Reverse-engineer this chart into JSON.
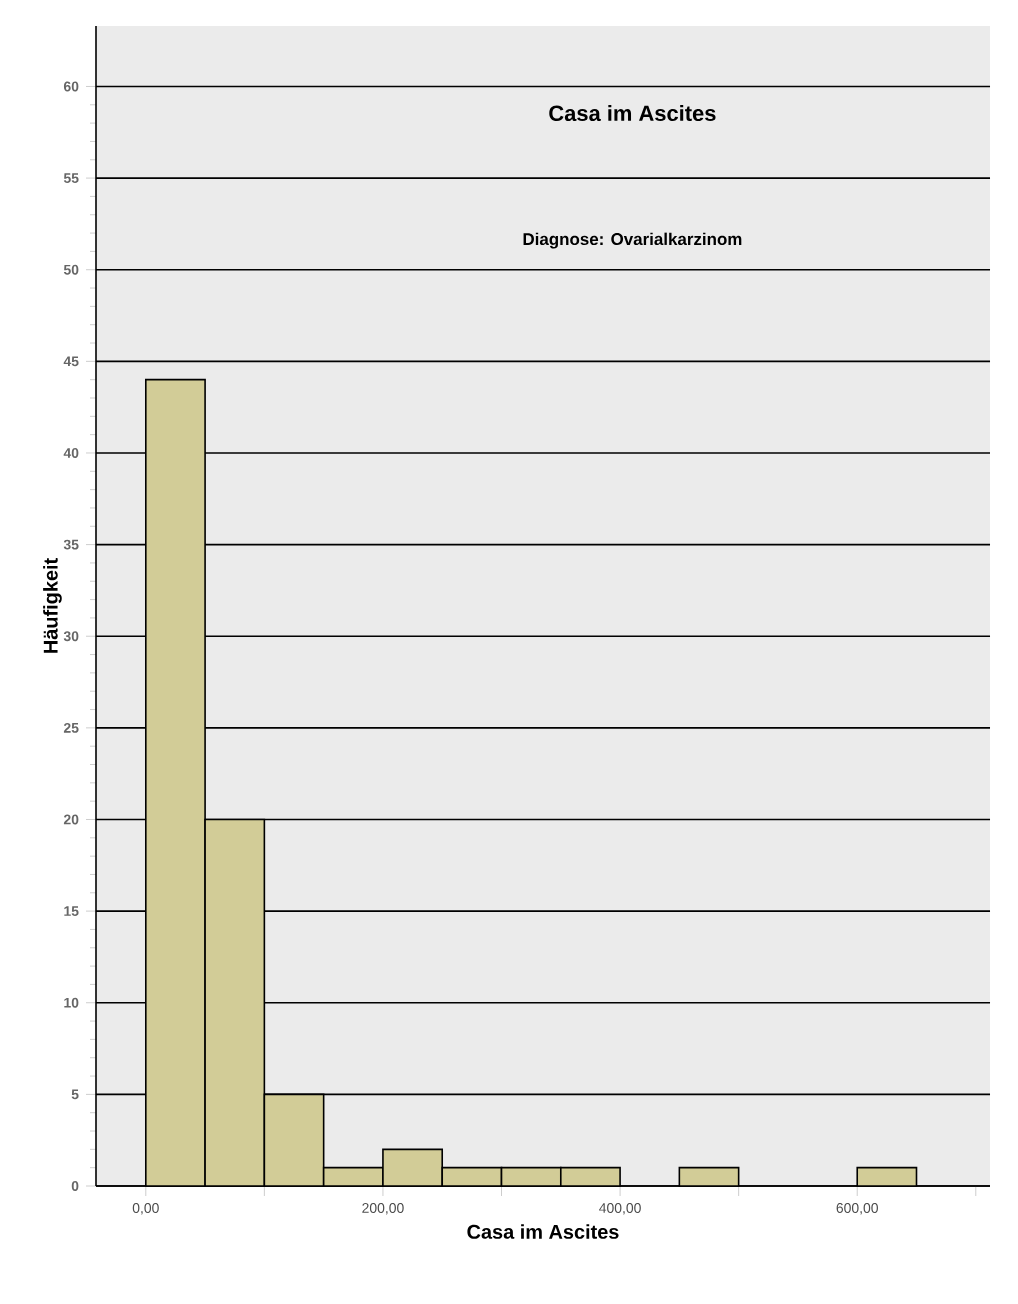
{
  "chart_data": {
    "type": "histogram",
    "title": "Casa im Ascites",
    "subtitle": "Diagnose: Ovarialkarzinom",
    "xlabel": "Casa im Ascites",
    "ylabel": "Häufigkeit",
    "bins": [
      0,
      50,
      100,
      150,
      200,
      250,
      300,
      350,
      400,
      450,
      500,
      550,
      600,
      650
    ],
    "values": [
      44,
      20,
      5,
      1,
      2,
      1,
      1,
      1,
      0,
      1,
      0,
      0,
      1
    ],
    "color": "#d2cc97",
    "xlim": [
      -42,
      712
    ],
    "ylim": [
      0,
      63.3
    ],
    "xticks": [
      {
        "value": 0,
        "label": "0,00"
      },
      {
        "value": 100,
        "label": null
      },
      {
        "value": 200,
        "label": "200,00"
      },
      {
        "value": 300,
        "label": null
      },
      {
        "value": 400,
        "label": "400,00"
      },
      {
        "value": 500,
        "label": null
      },
      {
        "value": 600,
        "label": "600,00"
      },
      {
        "value": 700,
        "label": null
      }
    ],
    "yticks": [
      0,
      5,
      10,
      15,
      20,
      25,
      30,
      35,
      40,
      45,
      50,
      55,
      60
    ],
    "grid": "y"
  }
}
